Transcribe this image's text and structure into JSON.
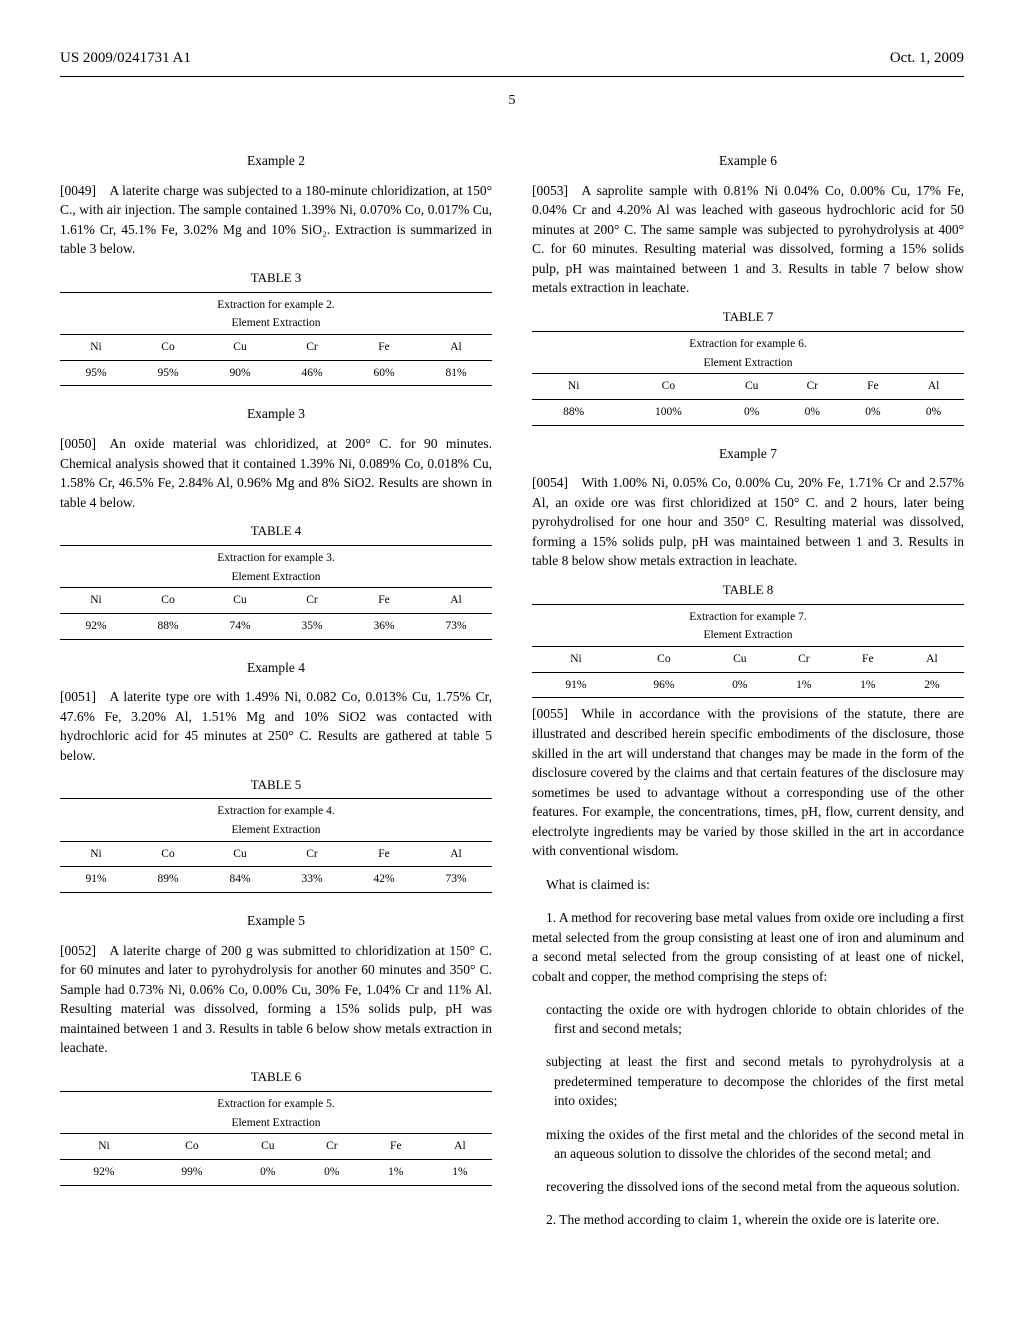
{
  "header": {
    "pub_number": "US 2009/0241731 A1",
    "date": "Oct. 1, 2009",
    "page_number": "5"
  },
  "left_col": {
    "ex2_title": "Example 2",
    "p49": "[0049] A laterite charge was subjected to a 180-minute chloridization, at 150° C., with air injection. The sample contained 1.39% Ni, 0.070% Co, 0.017% Cu, 1.61% Cr, 45.1% Fe, 3.02% Mg and 10% SiO₂. Extraction is summarized in table 3 below.",
    "t3_label": "TABLE 3",
    "t3_cap": "Extraction for example 2.",
    "t3_sub": "Element Extraction",
    "t3_headers": [
      "Ni",
      "Co",
      "Cu",
      "Cr",
      "Fe",
      "Al"
    ],
    "t3_values": [
      "95%",
      "95%",
      "90%",
      "46%",
      "60%",
      "81%"
    ],
    "ex3_title": "Example 3",
    "p50": "[0050] An oxide material was chloridized, at 200° C. for 90 minutes. Chemical analysis showed that it contained 1.39% Ni, 0.089% Co, 0.018% Cu, 1.58% Cr, 46.5% Fe, 2.84% Al, 0.96% Mg and 8% SiO2. Results are shown in table 4 below.",
    "t4_label": "TABLE 4",
    "t4_cap": "Extraction for example 3.",
    "t4_sub": "Element Extraction",
    "t4_headers": [
      "Ni",
      "Co",
      "Cu",
      "Cr",
      "Fe",
      "Al"
    ],
    "t4_values": [
      "92%",
      "88%",
      "74%",
      "35%",
      "36%",
      "73%"
    ],
    "ex4_title": "Example 4",
    "p51": "[0051] A laterite type ore with 1.49% Ni, 0.082 Co, 0.013% Cu, 1.75% Cr, 47.6% Fe, 3.20% Al, 1.51% Mg and 10% SiO2 was contacted with hydrochloric acid for 45 minutes at 250° C. Results are gathered at table 5 below.",
    "t5_label": "TABLE 5",
    "t5_cap": "Extraction for example 4.",
    "t5_sub": "Element Extraction",
    "t5_headers": [
      "Ni",
      "Co",
      "Cu",
      "Cr",
      "Fe",
      "Al"
    ],
    "t5_values": [
      "91%",
      "89%",
      "84%",
      "33%",
      "42%",
      "73%"
    ],
    "ex5_title": "Example 5",
    "p52": "[0052] A laterite charge of 200 g was submitted to chloridization at 150° C. for 60 minutes and later to pyrohydrolysis for another 60 minutes and 350° C. Sample had 0.73% Ni, 0.06% Co, 0.00% Cu, 30% Fe, 1.04% Cr and 11% Al. Resulting material was dissolved, forming a 15% solids pulp, pH was maintained between 1 and 3. Results in table 6 below show metals extraction in leachate.",
    "t6_label": "TABLE 6",
    "t6_cap": "Extraction for example 5.",
    "t6_sub": "Element Extraction",
    "t6_headers": [
      "Ni",
      "Co",
      "Cu",
      "Cr",
      "Fe",
      "Al"
    ],
    "t6_values": [
      "92%",
      "99%",
      "0%",
      "0%",
      "1%",
      "1%"
    ]
  },
  "right_col": {
    "ex6_title": "Example 6",
    "p53": "[0053] A saprolite sample with 0.81% Ni 0.04% Co, 0.00% Cu, 17% Fe, 0.04% Cr and 4.20% Al was leached with gaseous hydrochloric acid for 50 minutes at 200° C. The same sample was subjected to pyrohydrolysis at 400° C. for 60 minutes. Resulting material was dissolved, forming a 15% solids pulp, pH was maintained between 1 and 3. Results in table 7 below show metals extraction in leachate.",
    "t7_label": "TABLE 7",
    "t7_cap": "Extraction for example 6.",
    "t7_sub": "Element Extraction",
    "t7_headers": [
      "Ni",
      "Co",
      "Cu",
      "Cr",
      "Fe",
      "Al"
    ],
    "t7_values": [
      "88%",
      "100%",
      "0%",
      "0%",
      "0%",
      "0%"
    ],
    "ex7_title": "Example 7",
    "p54": "[0054] With 1.00% Ni, 0.05% Co, 0.00% Cu, 20% Fe, 1.71% Cr and 2.57% Al, an oxide ore was first chloridized at 150° C. and 2 hours, later being pyrohydrolised for one hour and 350° C. Resulting material was dissolved, forming a 15% solids pulp, pH was maintained between 1 and 3. Results in table 8 below show metals extraction in leachate.",
    "t8_label": "TABLE 8",
    "t8_cap": "Extraction for example 7.",
    "t8_sub": "Element Extraction",
    "t8_headers": [
      "Ni",
      "Co",
      "Cu",
      "Cr",
      "Fe",
      "Al"
    ],
    "t8_values": [
      "91%",
      "96%",
      "0%",
      "1%",
      "1%",
      "2%"
    ],
    "p55": "[0055] While in accordance with the provisions of the statute, there are illustrated and described herein specific embodiments of the disclosure, those skilled in the art will understand that changes may be made in the form of the disclosure covered by the claims and that certain features of the disclosure may sometimes be used to advantage without a corresponding use of the other features. For example, the concentrations, times, pH, flow, current density, and electrolyte ingredients may be varied by those skilled in the art in accordance with conventional wisdom.",
    "claims_intro": "What is claimed is:",
    "claim1_lead": "1. A method for recovering base metal values from oxide ore including a first metal selected from the group consisting at least one of iron and aluminum and a second metal selected from the group consisting of at least one of nickel, cobalt and copper, the method comprising the steps of:",
    "claim1_s1": "contacting the oxide ore with hydrogen chloride to obtain chlorides of the first and second metals;",
    "claim1_s2": "subjecting at least the first and second metals to pyrohydrolysis at a predetermined temperature to decompose the chlorides of the first metal into oxides;",
    "claim1_s3": "mixing the oxides of the first metal and the chlorides of the second metal in an aqueous solution to dissolve the chlorides of the second metal; and",
    "claim1_s4": "recovering the dissolved ions of the second metal from the aqueous solution.",
    "claim2": "2. The method according to claim 1, wherein the oxide ore is laterite ore."
  }
}
